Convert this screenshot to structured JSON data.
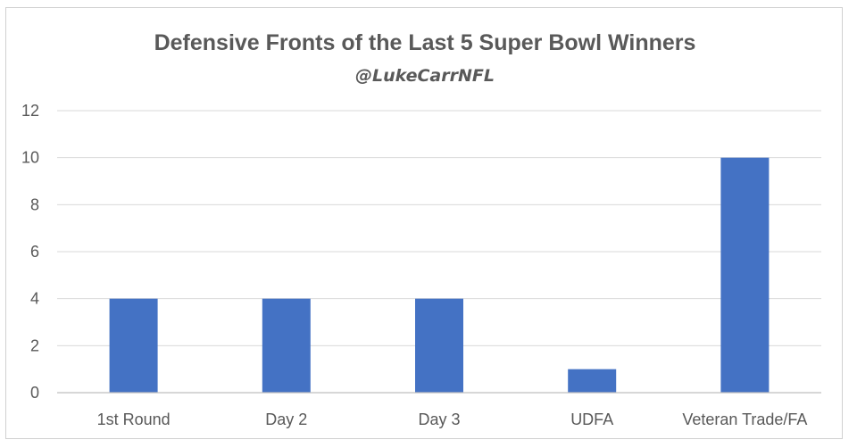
{
  "chart_data": {
    "type": "bar",
    "title": "Defensive Fronts of the Last 5 Super Bowl Winners",
    "subtitle": "@LukeCarrNFL",
    "categories": [
      "1st Round",
      "Day 2",
      "Day 3",
      "UDFA",
      "Veteran Trade/FA"
    ],
    "values": [
      4,
      4,
      4,
      1,
      10
    ],
    "ylim": [
      0,
      12
    ],
    "yticks": [
      0,
      2,
      4,
      6,
      8,
      10,
      12
    ],
    "grid": true,
    "legend": "none",
    "bar_color": "#4472c4"
  }
}
